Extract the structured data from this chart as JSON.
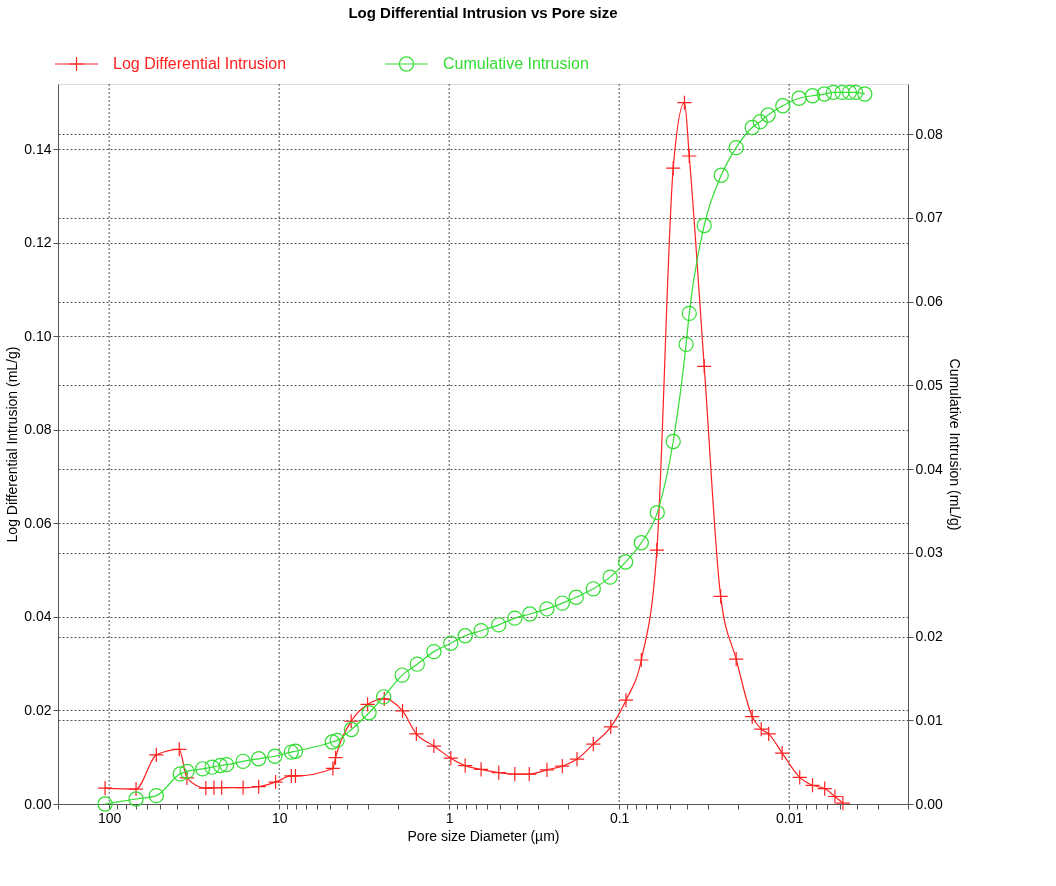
{
  "chart_data": {
    "type": "line",
    "title": "Log Differential Intrusion vs Pore size",
    "xlabel": "Pore size Diameter (µm)",
    "ylabel": "Log Differential Intrusion (mL/g)",
    "y2label": "Cumulative Intrusion (mL/g)",
    "log": "x",
    "grid": true,
    "legend": "top left",
    "line_style": "solid",
    "xlim": [
      200,
      0.002
    ],
    "xticks": [
      {
        "value": 200,
        "label": null
      },
      100,
      {
        "value": 90,
        "label": null
      },
      {
        "value": 80,
        "label": null
      },
      {
        "value": 70,
        "label": null
      },
      {
        "value": 60,
        "label": null
      },
      {
        "value": 50,
        "label": null
      },
      {
        "value": 40,
        "label": null
      },
      {
        "value": 30,
        "label": null
      },
      {
        "value": 20,
        "label": null
      },
      10,
      {
        "value": 9,
        "label": null
      },
      {
        "value": 8,
        "label": null
      },
      {
        "value": 7,
        "label": null
      },
      {
        "value": 6,
        "label": null
      },
      {
        "value": 5,
        "label": null
      },
      {
        "value": 4,
        "label": null
      },
      {
        "value": 3,
        "label": null
      },
      {
        "value": 2,
        "label": null
      },
      1,
      {
        "value": 0.9,
        "label": null
      },
      {
        "value": 0.8,
        "label": null
      },
      {
        "value": 0.7,
        "label": null
      },
      {
        "value": 0.6,
        "label": null
      },
      {
        "value": 0.5,
        "label": null
      },
      {
        "value": 0.4,
        "label": null
      },
      {
        "value": 0.3,
        "label": null
      },
      {
        "value": 0.2,
        "label": null
      },
      0.1,
      {
        "value": 0.09,
        "label": null
      },
      {
        "value": 0.08,
        "label": null
      },
      {
        "value": 0.07,
        "label": null
      },
      {
        "value": 0.06,
        "label": null
      },
      {
        "value": 0.05,
        "label": null
      },
      {
        "value": 0.04,
        "label": null
      },
      {
        "value": 0.03,
        "label": null
      },
      {
        "value": 0.02,
        "label": null
      },
      0.01,
      {
        "value": 0.009,
        "label": null
      },
      {
        "value": 0.008,
        "label": null
      },
      {
        "value": 0.007,
        "label": null
      },
      {
        "value": 0.006,
        "label": null
      },
      {
        "value": 0.005,
        "label": null
      },
      {
        "value": 0.004,
        "label": null
      },
      {
        "value": 0.003,
        "label": null
      },
      {
        "value": 0.002,
        "label": null
      }
    ],
    "ylim": [
      0,
      0.154
    ],
    "yticks": [
      {
        "value": 0,
        "label": "0.00"
      },
      0.02,
      0.04,
      0.06,
      0.08,
      {
        "value": 0.1,
        "label": "0.10"
      },
      0.12,
      0.14
    ],
    "y2lim": [
      0,
      0.086
    ],
    "y2ticks": [
      {
        "value": 0,
        "label": "0.00"
      },
      0.01,
      0.02,
      0.03,
      0.04,
      0.05,
      0.06,
      0.07,
      0.08
    ],
    "series": [
      {
        "name": "Log Differential Intrusion",
        "color": "#ff2020",
        "marker": "cross",
        "x": [
          105.7,
          69.5,
          52.8,
          38.7,
          34.9,
          27.0,
          24.2,
          21.8,
          16.3,
          13.2,
          10.5,
          8.48,
          8.02,
          4.83,
          4.66,
          3.77,
          3.02,
          2.41,
          1.88,
          1.56,
          1.23,
          0.978,
          0.805,
          0.649,
          0.511,
          0.411,
          0.338,
          0.266,
          0.216,
          0.177,
          0.142,
          0.112,
          0.0912,
          0.0741,
          0.06,
          0.0481,
          0.0413,
          0.0387,
          0.0316,
          0.0253,
          0.0205,
          0.0165,
          0.0146,
          0.0132,
          0.011,
          0.00867,
          0.00729,
          0.00618,
          0.00538,
          0.00483
        ],
        "values": [
          0.0034,
          0.0032,
          0.0105,
          0.0117,
          0.0056,
          0.0034,
          0.0035,
          0.0035,
          0.0035,
          0.0037,
          0.0047,
          0.006,
          0.006,
          0.0076,
          0.0099,
          0.0177,
          0.0213,
          0.0225,
          0.0199,
          0.015,
          0.0124,
          0.0098,
          0.0082,
          0.0074,
          0.0067,
          0.0064,
          0.0064,
          0.0073,
          0.0081,
          0.0096,
          0.0128,
          0.0165,
          0.0222,
          0.0308,
          0.0543,
          0.136,
          0.15,
          0.1386,
          0.0936,
          0.0444,
          0.031,
          0.0187,
          0.016,
          0.015,
          0.0109,
          0.0057,
          0.004,
          0.0033,
          0.0016,
          0.0002
        ]
      },
      {
        "name": "Cumulative Intrusion",
        "color": "#33dd33",
        "marker": "circle",
        "axis": "y2",
        "x": [
          105.7,
          69.5,
          52.8,
          38.2,
          34.8,
          28.2,
          24.8,
          22.2,
          20.4,
          16.3,
          13.2,
          10.6,
          8.48,
          8.02,
          4.87,
          4.56,
          3.76,
          2.96,
          2.43,
          1.89,
          1.54,
          1.23,
          0.978,
          0.805,
          0.649,
          0.511,
          0.411,
          0.335,
          0.266,
          0.216,
          0.179,
          0.142,
          0.113,
          0.0917,
          0.0741,
          0.0597,
          0.0481,
          0.0404,
          0.0387,
          0.0316,
          0.0251,
          0.0205,
          0.0165,
          0.0148,
          0.0133,
          0.0109,
          0.00875,
          0.00729,
          0.00621,
          0.0055,
          0.00489,
          0.00442,
          0.00406,
          0.00359
        ],
        "values": [
          0.0,
          0.0006,
          0.001,
          0.0036,
          0.0039,
          0.0042,
          0.0044,
          0.0046,
          0.0047,
          0.0051,
          0.0054,
          0.0057,
          0.0062,
          0.0063,
          0.0074,
          0.0076,
          0.0089,
          0.0109,
          0.0128,
          0.0154,
          0.0167,
          0.0182,
          0.0192,
          0.0201,
          0.0207,
          0.0214,
          0.0222,
          0.0227,
          0.0233,
          0.024,
          0.0247,
          0.0257,
          0.0271,
          0.0289,
          0.0312,
          0.0348,
          0.0433,
          0.0549,
          0.0586,
          0.0691,
          0.0751,
          0.0784,
          0.0808,
          0.0815,
          0.0823,
          0.0834,
          0.0843,
          0.0846,
          0.0848,
          0.085,
          0.085,
          0.085,
          0.085,
          0.0848
        ]
      }
    ]
  }
}
